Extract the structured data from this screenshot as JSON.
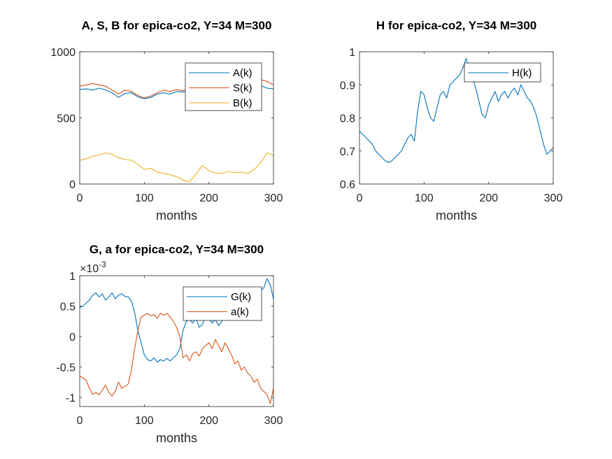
{
  "figure": {
    "background": "#ffffff",
    "series_colors": {
      "blue": "#0072BD",
      "orange": "#D95319",
      "yellow": "#EDB120"
    }
  },
  "chart_data": [
    {
      "type": "line",
      "title": "A, S, B for epica-co2, Y=34 M=300",
      "xlabel": "months",
      "ylabel": "",
      "xlim": [
        0,
        300
      ],
      "ylim": [
        0,
        1000
      ],
      "xticks": [
        "0",
        "100",
        "200",
        "300"
      ],
      "yticks": [
        "0",
        "500",
        "1000"
      ],
      "legend_position": "top-right",
      "grid": false,
      "series": [
        {
          "name": "A(k)",
          "color": "#0072BD",
          "x": [
            0,
            10,
            20,
            30,
            40,
            50,
            60,
            70,
            80,
            90,
            100,
            110,
            120,
            130,
            140,
            150,
            160,
            170,
            180,
            190,
            200,
            210,
            220,
            230,
            240,
            250,
            260,
            270,
            280,
            290,
            300
          ],
          "y": [
            715,
            720,
            710,
            725,
            712,
            690,
            655,
            685,
            690,
            660,
            645,
            655,
            680,
            690,
            680,
            700,
            695,
            705,
            690,
            700,
            730,
            745,
            760,
            740,
            750,
            765,
            755,
            740,
            745,
            725,
            720
          ]
        },
        {
          "name": "S(k)",
          "color": "#D95319",
          "x": [
            0,
            10,
            20,
            30,
            40,
            50,
            60,
            70,
            80,
            90,
            100,
            110,
            120,
            130,
            140,
            150,
            160,
            170,
            180,
            190,
            200,
            210,
            220,
            230,
            240,
            250,
            260,
            270,
            280,
            290,
            300
          ],
          "y": [
            740,
            750,
            760,
            750,
            740,
            710,
            680,
            710,
            700,
            670,
            650,
            665,
            690,
            710,
            700,
            715,
            705,
            730,
            710,
            725,
            760,
            775,
            790,
            770,
            785,
            800,
            790,
            775,
            790,
            775,
            750
          ]
        },
        {
          "name": "B(k)",
          "color": "#EDB120",
          "x": [
            0,
            10,
            20,
            30,
            40,
            50,
            60,
            70,
            80,
            90,
            100,
            110,
            120,
            130,
            140,
            150,
            160,
            170,
            180,
            190,
            200,
            210,
            220,
            230,
            240,
            250,
            260,
            270,
            280,
            290,
            300
          ],
          "y": [
            180,
            190,
            210,
            220,
            235,
            225,
            200,
            185,
            180,
            150,
            110,
            120,
            90,
            80,
            70,
            55,
            30,
            15,
            75,
            140,
            100,
            85,
            80,
            95,
            85,
            90,
            80,
            110,
            160,
            235,
            215
          ]
        }
      ]
    },
    {
      "type": "line",
      "title": "H for epica-co2, Y=34 M=300",
      "xlabel": "months",
      "ylabel": "",
      "xlim": [
        0,
        300
      ],
      "ylim": [
        0.6,
        1.0
      ],
      "xticks": [
        "0",
        "100",
        "200",
        "300"
      ],
      "yticks": [
        "0.6",
        "0.7",
        "0.8",
        "0.9",
        "1"
      ],
      "legend_position": "top-right",
      "grid": false,
      "series": [
        {
          "name": "H(k)",
          "color": "#0072BD",
          "x": [
            0,
            5,
            10,
            15,
            20,
            25,
            30,
            35,
            40,
            45,
            50,
            55,
            60,
            65,
            70,
            75,
            80,
            85,
            90,
            95,
            100,
            105,
            110,
            115,
            120,
            125,
            130,
            135,
            140,
            145,
            150,
            155,
            160,
            165,
            170,
            175,
            180,
            185,
            190,
            195,
            200,
            205,
            210,
            215,
            220,
            225,
            230,
            235,
            240,
            245,
            250,
            255,
            260,
            265,
            270,
            275,
            280,
            285,
            290,
            295,
            300
          ],
          "y": [
            0.76,
            0.75,
            0.74,
            0.73,
            0.72,
            0.7,
            0.69,
            0.68,
            0.67,
            0.665,
            0.67,
            0.68,
            0.69,
            0.7,
            0.72,
            0.74,
            0.75,
            0.73,
            0.82,
            0.88,
            0.87,
            0.83,
            0.8,
            0.79,
            0.83,
            0.87,
            0.88,
            0.86,
            0.9,
            0.91,
            0.92,
            0.93,
            0.95,
            0.98,
            0.95,
            0.92,
            0.89,
            0.85,
            0.81,
            0.8,
            0.84,
            0.86,
            0.88,
            0.85,
            0.87,
            0.88,
            0.86,
            0.88,
            0.89,
            0.87,
            0.9,
            0.88,
            0.86,
            0.85,
            0.83,
            0.8,
            0.76,
            0.72,
            0.69,
            0.7,
            0.71
          ]
        }
      ]
    },
    {
      "type": "line",
      "title": "G, a for epica-co2, Y=34 M=300",
      "xlabel": "months",
      "ylabel": "",
      "xlim": [
        0,
        300
      ],
      "ylim": [
        -1.15,
        1.0
      ],
      "y_exponent_label": "×10",
      "y_exponent": "-3",
      "xticks": [
        "0",
        "100",
        "200",
        "300"
      ],
      "yticks": [
        "-1",
        "-0.5",
        "0",
        "0.5",
        "1"
      ],
      "legend_position": "top-right",
      "grid": false,
      "series": [
        {
          "name": "G(k)",
          "color": "#0072BD",
          "x": [
            0,
            5,
            10,
            15,
            20,
            25,
            30,
            35,
            40,
            45,
            50,
            55,
            60,
            65,
            70,
            75,
            80,
            85,
            90,
            95,
            100,
            105,
            110,
            115,
            120,
            125,
            130,
            135,
            140,
            145,
            150,
            155,
            160,
            165,
            170,
            175,
            180,
            185,
            190,
            195,
            200,
            205,
            210,
            215,
            220,
            225,
            230,
            235,
            240,
            245,
            250,
            255,
            260,
            265,
            270,
            275,
            280,
            285,
            290,
            295,
            300
          ],
          "y": [
            0.48,
            0.5,
            0.55,
            0.6,
            0.68,
            0.72,
            0.65,
            0.7,
            0.6,
            0.65,
            0.72,
            0.62,
            0.68,
            0.7,
            0.66,
            0.65,
            0.58,
            0.4,
            0.1,
            -0.1,
            -0.3,
            -0.38,
            -0.4,
            -0.35,
            -0.42,
            -0.38,
            -0.4,
            -0.36,
            -0.4,
            -0.35,
            -0.3,
            -0.2,
            0.1,
            0.25,
            0.28,
            0.22,
            0.3,
            0.15,
            0.2,
            0.35,
            0.3,
            0.22,
            0.28,
            0.18,
            0.25,
            0.35,
            0.4,
            0.3,
            0.42,
            0.45,
            0.5,
            0.55,
            0.52,
            0.6,
            0.7,
            0.65,
            0.75,
            0.8,
            0.95,
            0.85,
            0.62
          ]
        },
        {
          "name": "a(k)",
          "color": "#D95319",
          "x": [
            0,
            5,
            10,
            15,
            20,
            25,
            30,
            35,
            40,
            45,
            50,
            55,
            60,
            65,
            70,
            75,
            80,
            85,
            90,
            95,
            100,
            105,
            110,
            115,
            120,
            125,
            130,
            135,
            140,
            145,
            150,
            155,
            160,
            165,
            170,
            175,
            180,
            185,
            190,
            195,
            200,
            205,
            210,
            215,
            220,
            225,
            230,
            235,
            240,
            245,
            250,
            255,
            260,
            265,
            270,
            275,
            280,
            285,
            290,
            295,
            300
          ],
          "y": [
            -0.65,
            -0.68,
            -0.72,
            -0.85,
            -0.95,
            -0.92,
            -0.96,
            -0.88,
            -0.8,
            -0.92,
            -0.98,
            -0.9,
            -0.75,
            -0.85,
            -0.82,
            -0.78,
            -0.55,
            -0.2,
            0.1,
            0.32,
            0.35,
            0.38,
            0.34,
            0.36,
            0.3,
            0.38,
            0.35,
            0.38,
            0.32,
            0.25,
            0.15,
            0.0,
            -0.35,
            -0.3,
            -0.4,
            -0.28,
            -0.25,
            -0.32,
            -0.2,
            -0.15,
            -0.1,
            -0.2,
            -0.05,
            -0.15,
            -0.25,
            -0.1,
            -0.2,
            -0.3,
            -0.45,
            -0.4,
            -0.55,
            -0.5,
            -0.6,
            -0.65,
            -0.75,
            -0.7,
            -0.85,
            -0.9,
            -0.95,
            -1.1,
            -0.85
          ]
        }
      ]
    }
  ]
}
